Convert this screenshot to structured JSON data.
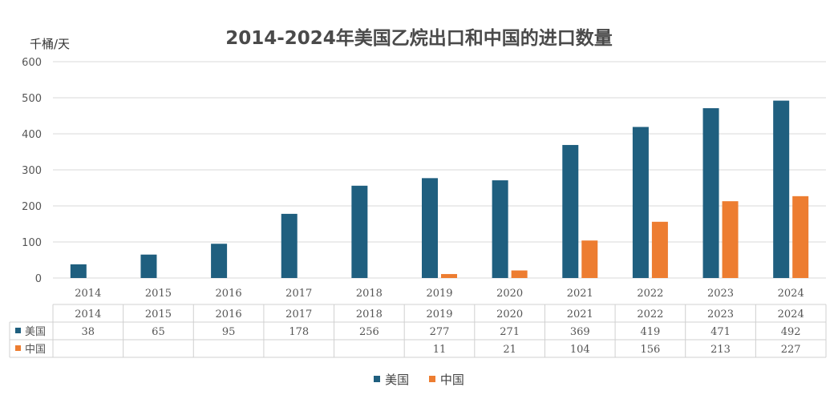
{
  "chart_data": {
    "type": "bar",
    "title": "2014-2024年美国乙烷出口和中国的进口数量",
    "ylabel": "千桶/天",
    "xlabel": "",
    "ylim": [
      0,
      600
    ],
    "yticks": [
      0,
      100,
      200,
      300,
      400,
      500,
      600
    ],
    "grid": true,
    "legend_position": "bottom",
    "data_table": true,
    "categories": [
      "2014",
      "2015",
      "2016",
      "2017",
      "2018",
      "2019",
      "2020",
      "2021",
      "2022",
      "2023",
      "2024"
    ],
    "series": [
      {
        "name": "美国",
        "color": "#1f5f7f",
        "values": [
          38,
          65,
          95,
          178,
          256,
          277,
          271,
          369,
          419,
          471,
          492
        ]
      },
      {
        "name": "中国",
        "color": "#ed7d31",
        "values": [
          null,
          null,
          null,
          null,
          null,
          11,
          21,
          104,
          156,
          213,
          227
        ]
      }
    ]
  }
}
